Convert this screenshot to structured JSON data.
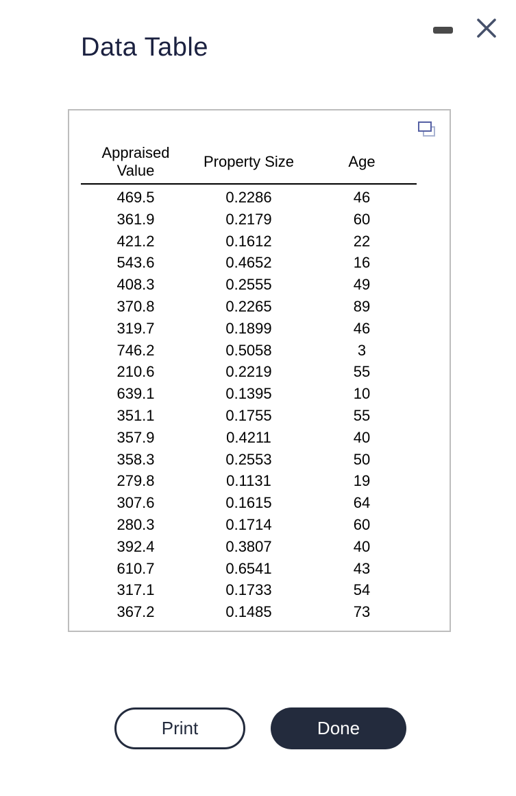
{
  "window": {
    "title": "Data Table"
  },
  "icons": {
    "minimize": "minimize-icon",
    "close": "close-icon",
    "copy": "copy-icon"
  },
  "table": {
    "columns": [
      "Appraised Value",
      "Property Size",
      "Age"
    ],
    "rows": [
      [
        "469.5",
        "0.2286",
        "46"
      ],
      [
        "361.9",
        "0.2179",
        "60"
      ],
      [
        "421.2",
        "0.1612",
        "22"
      ],
      [
        "543.6",
        "0.4652",
        "16"
      ],
      [
        "408.3",
        "0.2555",
        "49"
      ],
      [
        "370.8",
        "0.2265",
        "89"
      ],
      [
        "319.7",
        "0.1899",
        "46"
      ],
      [
        "746.2",
        "0.5058",
        "3"
      ],
      [
        "210.6",
        "0.2219",
        "55"
      ],
      [
        "639.1",
        "0.1395",
        "10"
      ],
      [
        "351.1",
        "0.1755",
        "55"
      ],
      [
        "357.9",
        "0.4211",
        "40"
      ],
      [
        "358.3",
        "0.2553",
        "50"
      ],
      [
        "279.8",
        "0.1131",
        "19"
      ],
      [
        "307.6",
        "0.1615",
        "64"
      ],
      [
        "280.3",
        "0.1714",
        "60"
      ],
      [
        "392.4",
        "0.3807",
        "40"
      ],
      [
        "610.7",
        "0.6541",
        "43"
      ],
      [
        "317.1",
        "0.1733",
        "54"
      ],
      [
        "367.2",
        "0.1485",
        "73"
      ]
    ]
  },
  "buttons": {
    "print": "Print",
    "done": "Done"
  },
  "colors": {
    "accent_navy": "#232b3d",
    "title_navy": "#1b2140",
    "panel_border": "#bdbdbd",
    "copy_icon_dark": "#5560a4",
    "copy_icon_light": "#a9b3d2",
    "close_icon": "#46516b",
    "minimize_icon": "#4a4a4a"
  }
}
